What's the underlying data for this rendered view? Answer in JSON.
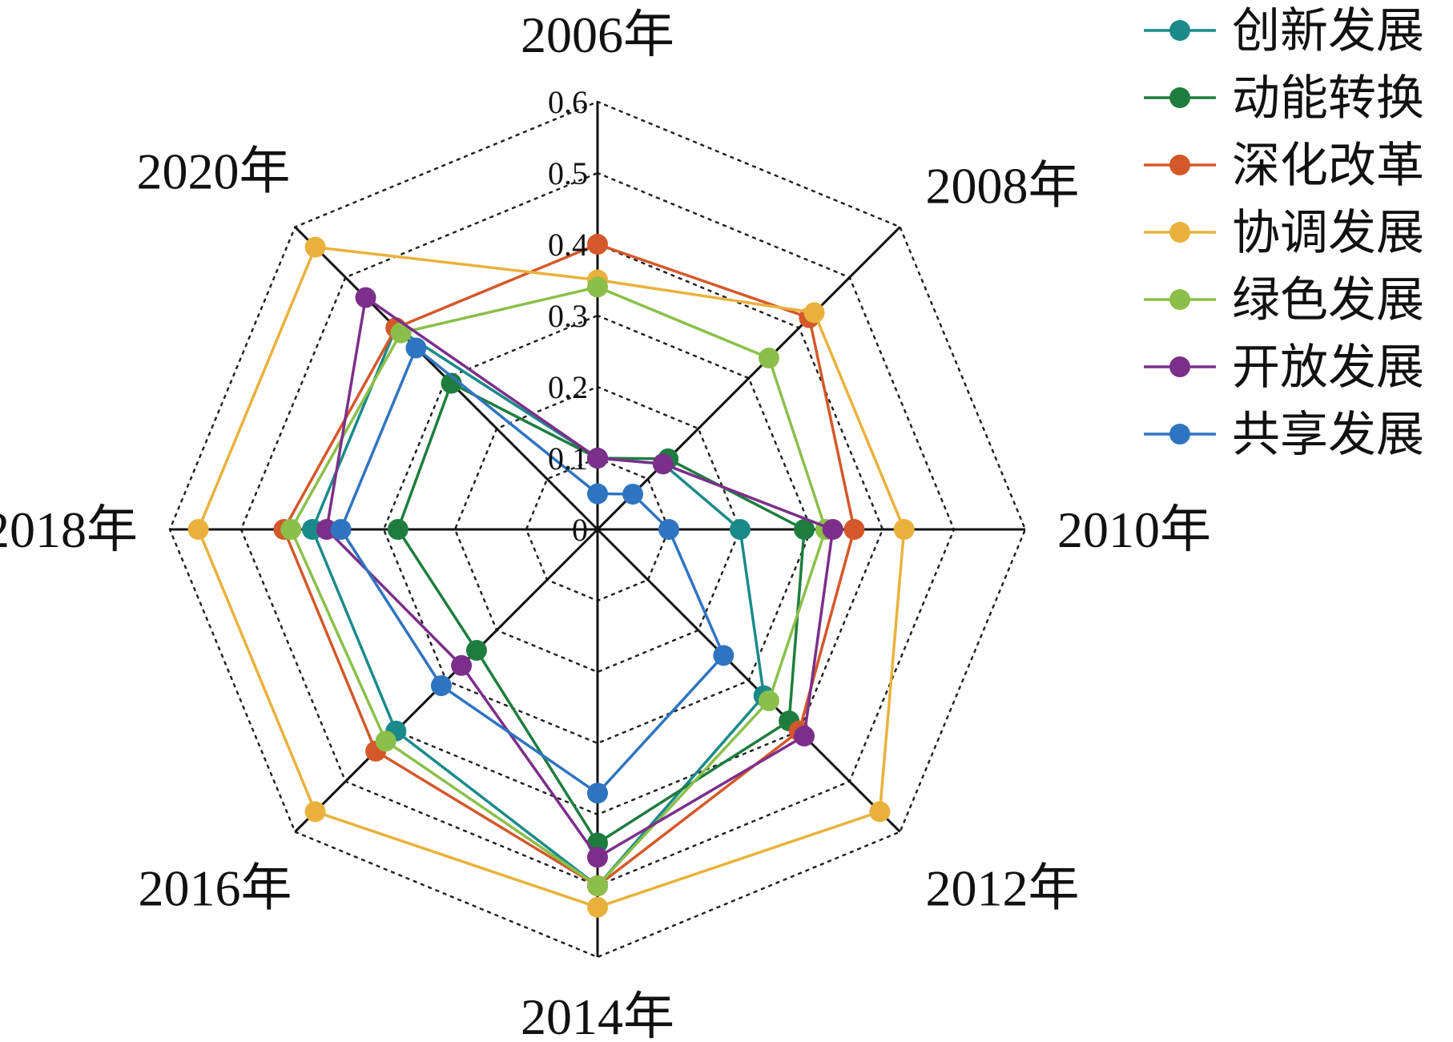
{
  "chart_data": {
    "type": "radar",
    "axes": [
      "2006年",
      "2008年",
      "2010年",
      "2012年",
      "2014年",
      "2016年",
      "2018年",
      "2020年"
    ],
    "rlim": [
      0,
      0.6
    ],
    "ticks": [
      "0",
      "0.1",
      "0.2",
      "0.3",
      "0.4",
      "0.5",
      "0.6"
    ],
    "tick_values": [
      0,
      0.1,
      0.2,
      0.3,
      0.4,
      0.5,
      0.6
    ],
    "grid": true,
    "legend_position": "top-right",
    "series": [
      {
        "name": "创新发展",
        "color": "#1a8a8a",
        "values": [
          0.1,
          0.13,
          0.2,
          0.33,
          0.5,
          0.4,
          0.4,
          0.4
        ]
      },
      {
        "name": "动能转换",
        "color": "#1e7d3e",
        "values": [
          0.1,
          0.14,
          0.29,
          0.38,
          0.44,
          0.24,
          0.28,
          0.29
        ]
      },
      {
        "name": "深化改革",
        "color": "#d4582a",
        "values": [
          0.4,
          0.42,
          0.36,
          0.4,
          0.5,
          0.44,
          0.44,
          0.4
        ]
      },
      {
        "name": "协调发展",
        "color": "#e9b13c",
        "values": [
          0.35,
          0.43,
          0.43,
          0.56,
          0.53,
          0.56,
          0.56,
          0.56
        ]
      },
      {
        "name": "绿色发展",
        "color": "#8bbf4a",
        "values": [
          0.34,
          0.34,
          0.32,
          0.34,
          0.5,
          0.42,
          0.43,
          0.39
        ]
      },
      {
        "name": "开放发展",
        "color": "#7b2f8a",
        "values": [
          0.1,
          0.13,
          0.33,
          0.41,
          0.46,
          0.27,
          0.38,
          0.46
        ]
      },
      {
        "name": "共享发展",
        "color": "#2f74c0",
        "values": [
          0.05,
          0.07,
          0.1,
          0.25,
          0.37,
          0.31,
          0.36,
          0.36
        ]
      }
    ]
  }
}
